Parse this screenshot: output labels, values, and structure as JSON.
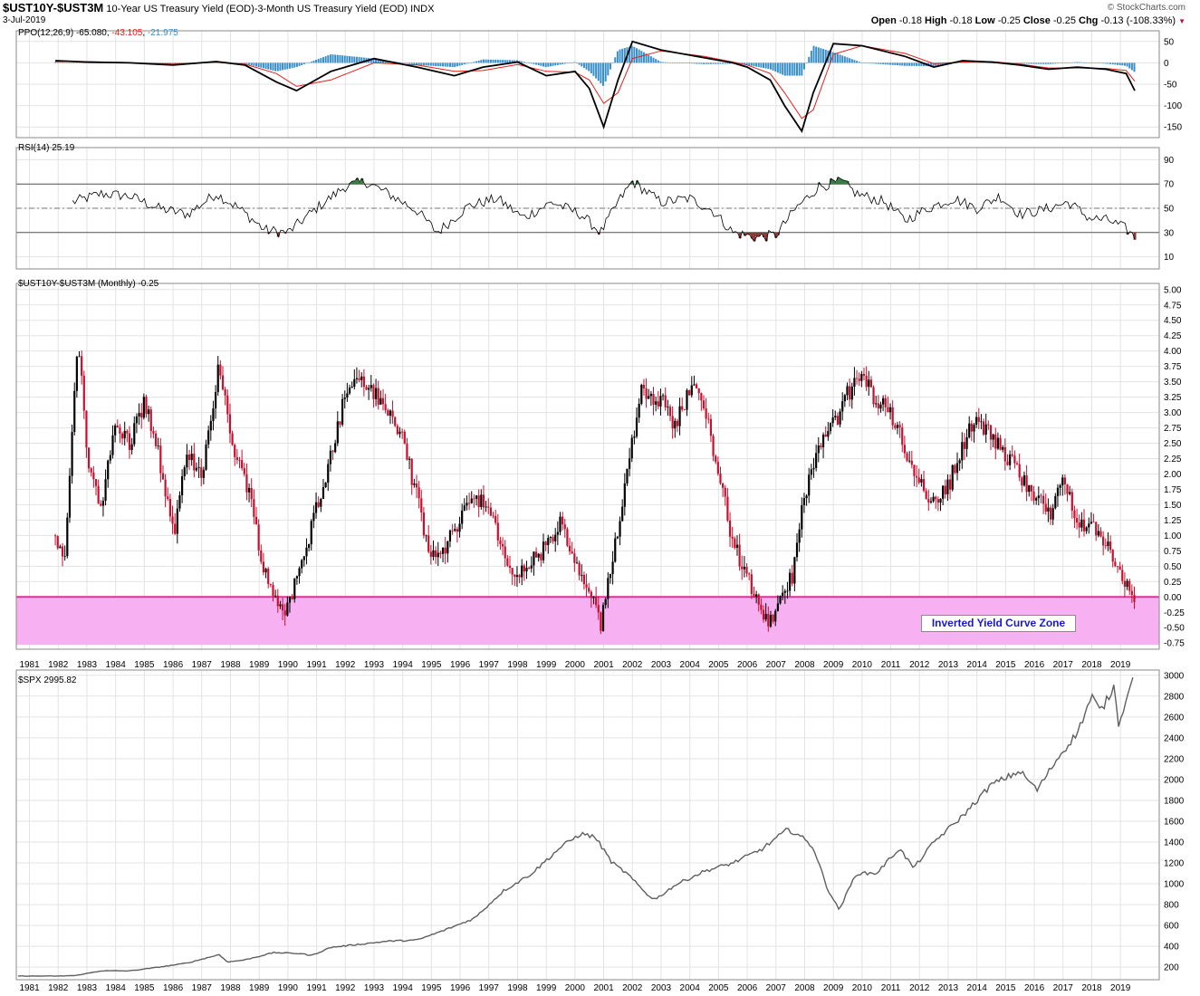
{
  "header": {
    "symbol": "$UST10Y-$UST3M",
    "description": "10-Year US Treasury Yield (EOD)-3-Month US Treasury Yield (EOD)",
    "exchange": "INDX",
    "date": "3-Jul-2019",
    "watermark": "© StockCharts.com",
    "stats": [
      {
        "label": "Open",
        "value": "-0.18"
      },
      {
        "label": "High",
        "value": "-0.18"
      },
      {
        "label": "Low",
        "value": "-0.25"
      },
      {
        "label": "Close",
        "value": "-0.25"
      },
      {
        "label": "Chg",
        "value": "-0.13 (-108.33%)"
      }
    ]
  },
  "colors": {
    "up": "#000000",
    "down": "#c8102e",
    "zone_fill": "#f7b1f2",
    "zone_line": "#e0309a",
    "ppo_signal": "#e0201a",
    "ppo_hist": "#3a8fc8",
    "rsi_overbought": "#3a7d44",
    "rsi_oversold": "#8b3a3a",
    "spx_line": "#5f5f5f",
    "grid": "#e3e3e3"
  },
  "panels": {
    "ppo": {
      "label_prefix": "PPO(12,26,9)",
      "ppo_value": "-65.080",
      "signal_value": "-43.105",
      "hist_value": "-21.975",
      "ticks": [
        "50",
        "0",
        "-50",
        "-100",
        "-150"
      ]
    },
    "rsi": {
      "label": "RSI(14) 25.19",
      "ticks": [
        "90",
        "70",
        "50",
        "30",
        "10"
      ]
    },
    "main": {
      "label": "$UST10Y-$UST3M (Monthly) -0.25",
      "ticks": [
        "5.00",
        "4.75",
        "4.50",
        "4.25",
        "4.00",
        "3.75",
        "3.50",
        "3.25",
        "3.00",
        "2.75",
        "2.50",
        "2.25",
        "2.00",
        "1.75",
        "1.50",
        "1.25",
        "1.00",
        "0.75",
        "0.50",
        "0.25",
        "0.00",
        "-0.25",
        "-0.50",
        "-0.75"
      ],
      "zone_label": "Inverted Yield Curve Zone"
    },
    "spx": {
      "label": "$SPX 2995.82",
      "ticks": [
        "3000",
        "2800",
        "2600",
        "2400",
        "2200",
        "2000",
        "1800",
        "1600",
        "1400",
        "1200",
        "1000",
        "800",
        "600",
        "400",
        "200"
      ]
    }
  },
  "x_axis_labels": [
    "1981",
    "1982",
    "1983",
    "1984",
    "1985",
    "1986",
    "1987",
    "1988",
    "1989",
    "1990",
    "1991",
    "1992",
    "1993",
    "1994",
    "1995",
    "1996",
    "1997",
    "1998",
    "1999",
    "2000",
    "2001",
    "2002",
    "2003",
    "2004",
    "2005",
    "2006",
    "2007",
    "2008",
    "2009",
    "2010",
    "2011",
    "2012",
    "2013",
    "2014",
    "2015",
    "2016",
    "2017",
    "2018",
    "2019"
  ],
  "chart_data": [
    {
      "type": "line",
      "title": "PPO(12,26,9)",
      "x": [
        1981.9,
        1983.0,
        1984.5,
        1986.0,
        1987.5,
        1988.5,
        1989.6,
        1990.3,
        1991.5,
        1993.0,
        1994.5,
        1995.8,
        1996.8,
        1998.0,
        1999.0,
        2000.0,
        2000.5,
        2001.0,
        2001.5,
        2002.0,
        2003.0,
        2004.5,
        2005.5,
        2006.0,
        2006.8,
        2007.3,
        2007.9,
        2008.3,
        2009.0,
        2010.0,
        2011.5,
        2012.5,
        2013.5,
        2014.5,
        2015.5,
        2016.5,
        2017.5,
        2018.5,
        2019.2,
        2019.5
      ],
      "ylim": [
        -175,
        75
      ],
      "series": [
        {
          "name": "PPO",
          "values": [
            5,
            2,
            0,
            -5,
            3,
            -5,
            -45,
            -65,
            -20,
            10,
            -10,
            -30,
            -10,
            2,
            -30,
            -20,
            -60,
            -150,
            -40,
            50,
            30,
            12,
            0,
            -10,
            -40,
            -100,
            -160,
            -70,
            45,
            40,
            15,
            -10,
            5,
            2,
            -5,
            -15,
            -10,
            -15,
            -25,
            -65
          ]
        },
        {
          "name": "Signal",
          "values": [
            3,
            3,
            0,
            -3,
            1,
            -3,
            -25,
            -55,
            -40,
            0,
            -5,
            -20,
            -18,
            -4,
            -20,
            -22,
            -40,
            -95,
            -70,
            10,
            28,
            15,
            2,
            -5,
            -25,
            -70,
            -130,
            -110,
            20,
            40,
            22,
            -2,
            2,
            3,
            -3,
            -12,
            -12,
            -13,
            -18,
            -43
          ]
        }
      ]
    },
    {
      "type": "line",
      "title": "RSI(14)",
      "x": [
        1982.5,
        1983.5,
        1984.5,
        1985.5,
        1986.5,
        1987.5,
        1988.3,
        1989.2,
        1990.0,
        1991.0,
        1992.0,
        1992.7,
        1993.5,
        1994.5,
        1995.2,
        1996.3,
        1997.3,
        1998.2,
        1999.2,
        2000.2,
        2000.9,
        2001.5,
        2002.0,
        2003.0,
        2004.0,
        2004.8,
        2005.5,
        2006.3,
        2007.0,
        2007.7,
        2008.5,
        2009.3,
        2009.8,
        2010.8,
        2011.5,
        2012.3,
        2013.2,
        2014.0,
        2014.8,
        2015.5,
        2016.2,
        2017.2,
        2017.9,
        2018.6,
        2019.2,
        2019.5
      ],
      "ylim": [
        0,
        100
      ],
      "values": [
        55,
        62,
        60,
        50,
        45,
        62,
        50,
        32,
        30,
        50,
        68,
        72,
        62,
        48,
        30,
        52,
        58,
        42,
        55,
        45,
        30,
        55,
        72,
        55,
        58,
        48,
        30,
        26,
        28,
        50,
        68,
        72,
        62,
        55,
        40,
        50,
        58,
        50,
        60,
        45,
        48,
        55,
        42,
        40,
        33,
        26
      ]
    },
    {
      "type": "line",
      "title": "$UST10Y-$UST3M (Monthly)",
      "x": [
        1981.9,
        1982.2,
        1982.4,
        1982.7,
        1983.0,
        1983.5,
        1984.0,
        1984.5,
        1985.0,
        1985.5,
        1986.0,
        1986.5,
        1987.0,
        1987.6,
        1988.0,
        1988.6,
        1989.2,
        1989.5,
        1989.9,
        1990.5,
        1991.0,
        1991.5,
        1992.0,
        1992.5,
        1993.0,
        1993.5,
        1994.0,
        1994.5,
        1995.0,
        1995.5,
        1996.0,
        1996.5,
        1997.0,
        1997.5,
        1998.0,
        1998.5,
        1999.0,
        1999.5,
        2000.0,
        2000.5,
        2000.9,
        2001.3,
        2001.8,
        2002.3,
        2003.0,
        2003.5,
        2004.0,
        2004.5,
        2005.0,
        2005.5,
        2006.0,
        2006.5,
        2006.9,
        2007.2,
        2007.6,
        2008.0,
        2008.5,
        2009.0,
        2009.5,
        2010.0,
        2010.5,
        2011.0,
        2011.5,
        2012.0,
        2012.5,
        2013.0,
        2013.5,
        2014.0,
        2014.5,
        2015.0,
        2015.5,
        2016.0,
        2016.5,
        2017.0,
        2017.5,
        2018.0,
        2018.5,
        2019.0,
        2019.3,
        2019.5
      ],
      "ylim": [
        -0.85,
        5.1
      ],
      "values": [
        1.0,
        0.5,
        2.0,
        4.2,
        2.3,
        1.5,
        2.8,
        2.5,
        3.2,
        2.3,
        1.0,
        2.3,
        2.0,
        3.8,
        2.6,
        1.8,
        0.4,
        0.0,
        -0.2,
        0.5,
        1.5,
        2.3,
        3.3,
        3.6,
        3.3,
        3.0,
        2.6,
        1.6,
        0.6,
        0.8,
        1.3,
        1.7,
        1.4,
        0.7,
        0.3,
        0.6,
        0.8,
        1.2,
        0.5,
        0.1,
        -0.5,
        0.6,
        2.0,
        3.4,
        3.2,
        2.8,
        3.4,
        3.2,
        2.0,
        0.9,
        0.3,
        -0.2,
        -0.5,
        0.0,
        0.4,
        1.7,
        2.4,
        2.8,
        3.3,
        3.6,
        3.2,
        3.0,
        2.4,
        1.9,
        1.5,
        1.8,
        2.5,
        2.9,
        2.6,
        2.3,
        2.0,
        1.7,
        1.3,
        1.9,
        1.3,
        1.1,
        0.9,
        0.4,
        0.05,
        -0.25
      ]
    },
    {
      "type": "line",
      "title": "$SPX",
      "x": [
        1980.6,
        1982.0,
        1982.6,
        1983.5,
        1984.5,
        1985.5,
        1986.5,
        1987.6,
        1987.9,
        1988.5,
        1989.5,
        1990.5,
        1990.8,
        1991.5,
        1992.5,
        1993.5,
        1994.5,
        1995.5,
        1996.5,
        1997.5,
        1998.5,
        1999.5,
        2000.2,
        2000.7,
        2001.3,
        2001.8,
        2002.5,
        2002.8,
        2003.5,
        2004.5,
        2005.5,
        2006.5,
        2007.4,
        2007.8,
        2008.3,
        2008.8,
        2009.2,
        2009.8,
        2010.5,
        2011.3,
        2011.8,
        2012.5,
        2013.5,
        2014.5,
        2015.5,
        2016.1,
        2016.8,
        2017.5,
        2018.0,
        2018.3,
        2018.8,
        2018.95,
        2019.3,
        2019.5
      ],
      "ylim": [
        80,
        3050
      ],
      "values": [
        115,
        115,
        120,
        165,
        165,
        200,
        240,
        320,
        250,
        270,
        340,
        330,
        310,
        390,
        420,
        450,
        460,
        560,
        670,
        930,
        1100,
        1350,
        1480,
        1450,
        1200,
        1100,
        900,
        850,
        990,
        1120,
        1200,
        1330,
        1520,
        1470,
        1350,
        950,
        750,
        1100,
        1100,
        1340,
        1150,
        1400,
        1650,
        1950,
        2080,
        1900,
        2200,
        2450,
        2800,
        2650,
        2900,
        2500,
        2900,
        2995.82
      ]
    }
  ]
}
